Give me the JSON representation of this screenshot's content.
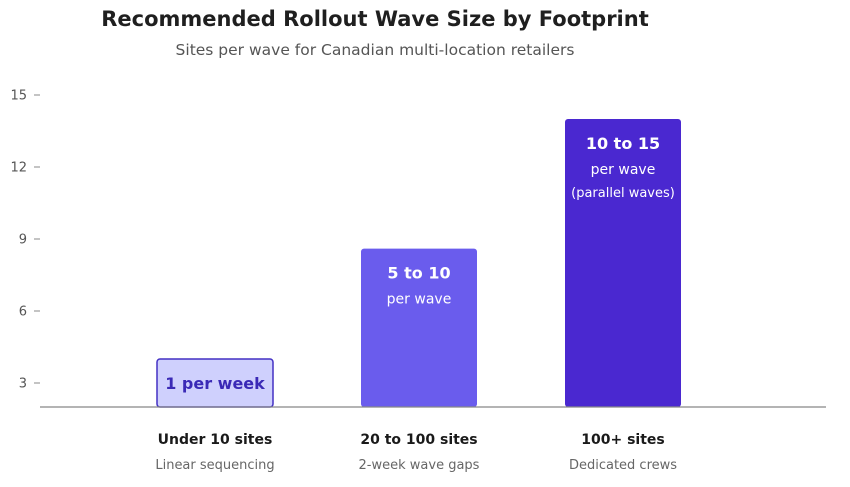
{
  "chart_data": {
    "type": "bar",
    "title": "Recommended Rollout Wave Size by Footprint",
    "subtitle": "Sites per wave for Canadian multi-location retailers",
    "categories": [
      "Under 10 sites",
      "20 to 100 sites",
      "100+ sites"
    ],
    "category_notes": [
      "Linear sequencing",
      "2-week wave gaps",
      "Dedicated crews"
    ],
    "values": [
      4,
      8.6,
      14
    ],
    "data_labels": [
      [
        "1 per week"
      ],
      [
        "5 to 10",
        "per wave"
      ],
      [
        "10 to 15",
        "per wave",
        "(parallel waves)"
      ]
    ],
    "ylim": [
      2,
      15
    ],
    "yticks": [
      3,
      6,
      9,
      12,
      15
    ],
    "xlabel": "",
    "ylabel": "",
    "grid": false,
    "colors": {
      "bar_fills": [
        "#cfd0fd",
        "#6a5ced",
        "#4a28d0"
      ],
      "bar_strokes": [
        "#4331c4",
        "none",
        "none"
      ],
      "label_colors": [
        "#3a29b6",
        "#ffffff",
        "#ffffff"
      ],
      "axis": "#888888"
    }
  }
}
